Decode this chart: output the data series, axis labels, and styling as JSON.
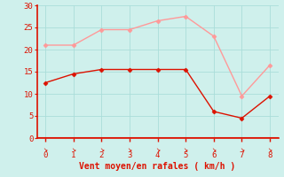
{
  "x": [
    0,
    1,
    2,
    3,
    4,
    5,
    6,
    7,
    8
  ],
  "wind_avg": [
    12.5,
    14.5,
    15.5,
    15.5,
    15.5,
    15.5,
    6.0,
    4.5,
    9.5
  ],
  "wind_gust": [
    21.0,
    21.0,
    24.5,
    24.5,
    26.5,
    27.5,
    23.0,
    9.5,
    16.5
  ],
  "avg_color": "#dd1100",
  "gust_color": "#ff9999",
  "bg_color": "#cff0ec",
  "grid_color": "#aaddda",
  "axis_color": "#dd1100",
  "xlabel": "Vent moyen/en rafales ( km/h )",
  "xlabel_color": "#dd1100",
  "tick_color": "#dd1100",
  "ylim": [
    0,
    30
  ],
  "xlim": [
    -0.3,
    8.3
  ],
  "yticks": [
    0,
    5,
    10,
    15,
    20,
    25,
    30
  ],
  "xticks": [
    0,
    1,
    2,
    3,
    4,
    5,
    6,
    7,
    8
  ],
  "marker_style": "D",
  "marker_size": 2.5,
  "line_width": 1.0
}
